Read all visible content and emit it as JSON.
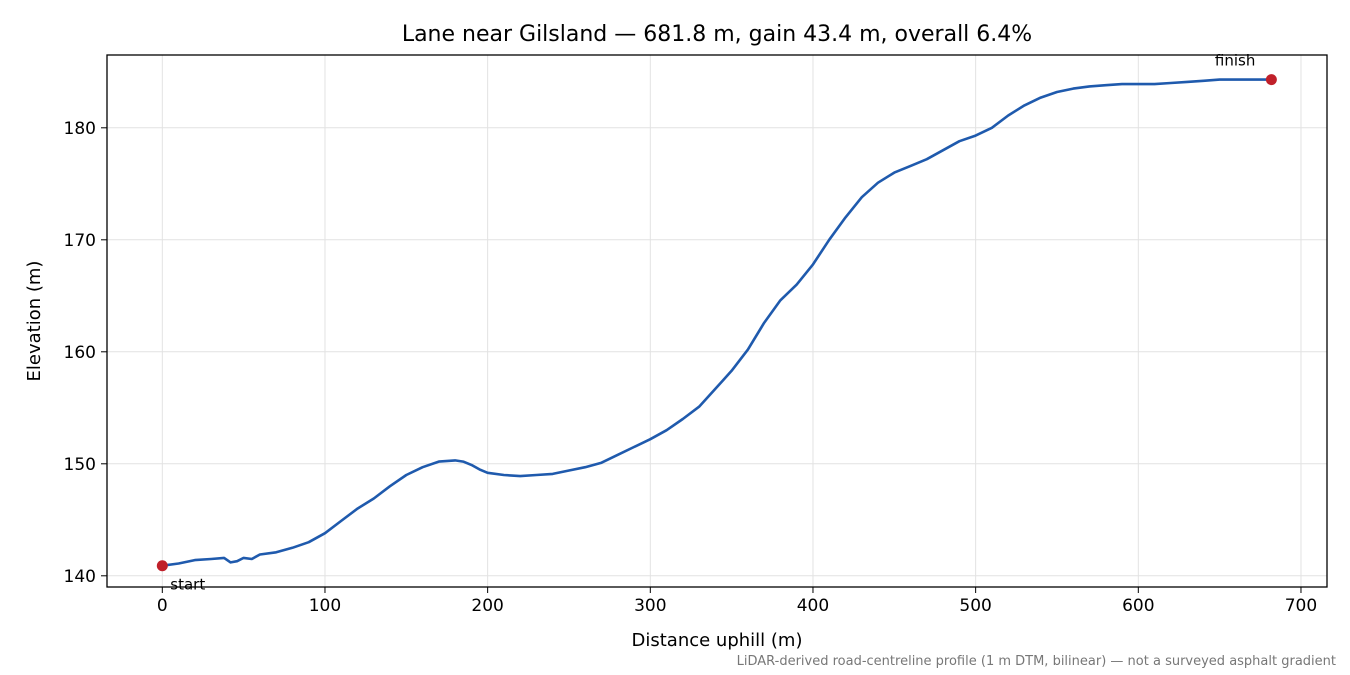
{
  "chart_data": {
    "type": "line",
    "title": "Lane near Gilsland — 681.8 m, gain 43.4 m, overall 6.4%",
    "xlabel": "Distance uphill (m)",
    "ylabel": "Elevation (m)",
    "xlim": [
      -34,
      716
    ],
    "ylim": [
      139.0,
      186.5
    ],
    "xticks": [
      0,
      100,
      200,
      300,
      400,
      500,
      600,
      700
    ],
    "yticks": [
      140,
      150,
      160,
      170,
      180
    ],
    "grid": true,
    "line_color": "#1f5aad",
    "marker_color": "#c0202a",
    "series": [
      {
        "x": [
          0,
          10,
          20,
          30,
          38,
          42,
          46,
          50,
          55,
          60,
          70,
          80,
          90,
          100,
          110,
          120,
          130,
          140,
          150,
          160,
          170,
          180,
          185,
          190,
          195,
          200,
          210,
          220,
          230,
          240,
          250,
          260,
          270,
          280,
          290,
          300,
          310,
          320,
          330,
          340,
          350,
          360,
          370,
          380,
          390,
          400,
          410,
          420,
          430,
          440,
          450,
          460,
          470,
          480,
          490,
          500,
          510,
          520,
          530,
          540,
          550,
          560,
          570,
          580,
          590,
          600,
          610,
          620,
          630,
          640,
          650,
          660,
          670,
          681.8
        ],
        "y": [
          140.9,
          141.1,
          141.4,
          141.5,
          141.6,
          141.2,
          141.3,
          141.6,
          141.5,
          141.9,
          142.1,
          142.5,
          143.0,
          143.8,
          144.9,
          146.0,
          146.9,
          148.0,
          149.0,
          149.7,
          150.2,
          150.3,
          150.2,
          149.9,
          149.5,
          149.2,
          149.0,
          148.9,
          149.0,
          149.1,
          149.4,
          149.7,
          150.1,
          150.8,
          151.5,
          152.2,
          153.0,
          154.0,
          155.1,
          156.7,
          158.3,
          160.2,
          162.6,
          164.6,
          166.0,
          167.8,
          170.0,
          172.0,
          173.8,
          175.1,
          176.0,
          176.6,
          177.2,
          178.0,
          178.8,
          179.3,
          180.0,
          181.1,
          182.0,
          182.7,
          183.2,
          183.5,
          183.7,
          183.8,
          183.9,
          183.9,
          183.9,
          184.0,
          184.1,
          184.2,
          184.3,
          184.3,
          184.3,
          184.3
        ]
      }
    ],
    "annotations": [
      {
        "text": "start",
        "x": 0,
        "y": 140.9
      },
      {
        "text": "finish",
        "x": 681.8,
        "y": 184.3
      }
    ],
    "footnote": "LiDAR-derived road-centreline profile (1 m DTM, bilinear) — not a surveyed asphalt gradient"
  }
}
